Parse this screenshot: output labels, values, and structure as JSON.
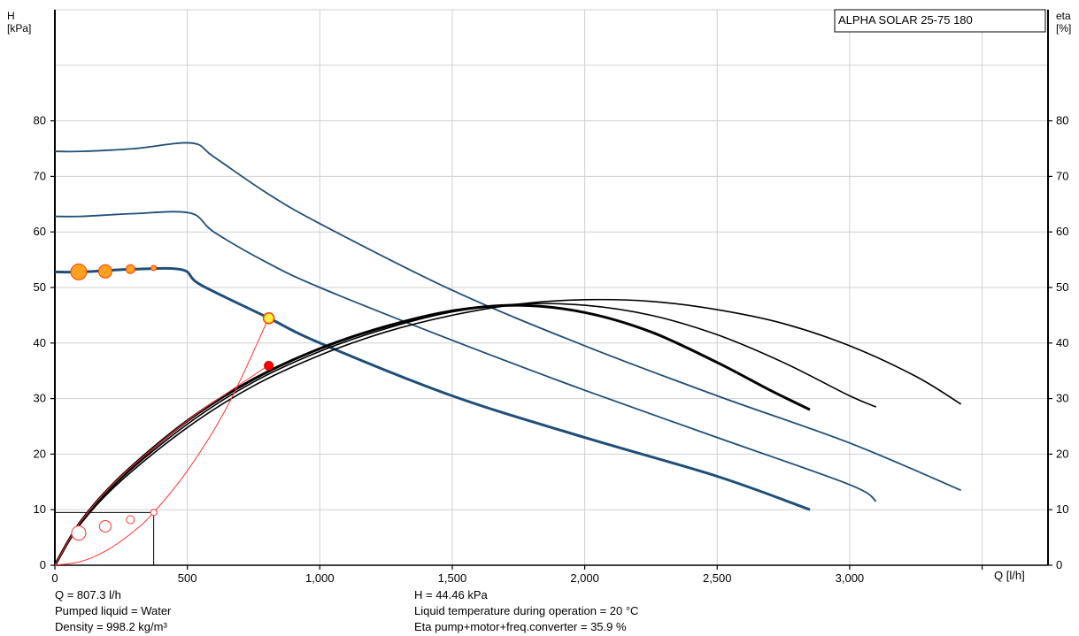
{
  "chart_data": {
    "type": "line",
    "title": "ALPHA SOLAR 25-75  180",
    "y_left_label": [
      "H",
      "[kPa]"
    ],
    "y_right_label": [
      "eta",
      "[%]"
    ],
    "x_label": "Q [l/h]",
    "xlim": [
      0,
      3700
    ],
    "ylim": [
      0,
      100
    ],
    "x_ticks": [
      "0",
      "500",
      "1,000",
      "1,500",
      "2,000",
      "2,500",
      "3,000"
    ],
    "x_tick_values": [
      0,
      500,
      1000,
      1500,
      2000,
      2500,
      3000
    ],
    "y_ticks": [
      "0",
      "10",
      "20",
      "30",
      "40",
      "50",
      "60",
      "70",
      "80"
    ],
    "y_tick_values": [
      0,
      10,
      20,
      30,
      40,
      50,
      60,
      70,
      80
    ],
    "grid": true,
    "colors": {
      "head": "#1f4e79",
      "eta": "#000000",
      "system": "#ff3333",
      "marker_fill": "#ffa020",
      "duty_point": "#ff0000",
      "grid": "#d0d0d0"
    },
    "head_curves": [
      {
        "points": [
          [
            0,
            74.5
          ],
          [
            100,
            74.5
          ],
          [
            300,
            75
          ],
          [
            515,
            76
          ],
          [
            600,
            73.5
          ],
          [
            800,
            67
          ],
          [
            1000,
            61.5
          ],
          [
            1500,
            49.5
          ],
          [
            2000,
            39.5
          ],
          [
            2500,
            30.5
          ],
          [
            3000,
            22
          ],
          [
            3420,
            13.5
          ]
        ]
      },
      {
        "points": [
          [
            0,
            62.8
          ],
          [
            100,
            62.8
          ],
          [
            300,
            63.3
          ],
          [
            510,
            63.4
          ],
          [
            600,
            60
          ],
          [
            800,
            54.5
          ],
          [
            1000,
            50
          ],
          [
            1500,
            40.5
          ],
          [
            2000,
            31.5
          ],
          [
            2500,
            23
          ],
          [
            3000,
            14.5
          ],
          [
            3100,
            11.5
          ]
        ]
      },
      {
        "points": [
          [
            0,
            52.8
          ],
          [
            100,
            52.8
          ],
          [
            300,
            53.3
          ],
          [
            480,
            53.2
          ],
          [
            550,
            50.5
          ],
          [
            807,
            44.5
          ],
          [
            1000,
            40
          ],
          [
            1500,
            30.5
          ],
          [
            2000,
            23
          ],
          [
            2500,
            16
          ],
          [
            2850,
            10
          ]
        ],
        "thick": true
      }
    ],
    "eta_curves": [
      {
        "points": [
          [
            0,
            0
          ],
          [
            100,
            8
          ],
          [
            250,
            16
          ],
          [
            500,
            26
          ],
          [
            750,
            33.5
          ],
          [
            1000,
            39
          ],
          [
            1250,
            43
          ],
          [
            1500,
            45.8
          ],
          [
            1750,
            46.8
          ],
          [
            2000,
            45.5
          ],
          [
            2250,
            42
          ],
          [
            2500,
            36.5
          ],
          [
            2700,
            31.5
          ],
          [
            2850,
            28
          ]
        ],
        "thick": true
      },
      {
        "points": [
          [
            0,
            0
          ],
          [
            100,
            7.8
          ],
          [
            250,
            15.6
          ],
          [
            500,
            25.4
          ],
          [
            750,
            33
          ],
          [
            1000,
            38.5
          ],
          [
            1250,
            42.6
          ],
          [
            1500,
            45.6
          ],
          [
            1750,
            47
          ],
          [
            2000,
            46.8
          ],
          [
            2250,
            45
          ],
          [
            2500,
            41.5
          ],
          [
            2750,
            36.5
          ],
          [
            3000,
            30.5
          ],
          [
            3100,
            28.5
          ]
        ]
      },
      {
        "points": [
          [
            0,
            0
          ],
          [
            100,
            7.6
          ],
          [
            250,
            15.2
          ],
          [
            500,
            24.8
          ],
          [
            750,
            32.3
          ],
          [
            1000,
            37.8
          ],
          [
            1250,
            42
          ],
          [
            1500,
            45
          ],
          [
            1750,
            47
          ],
          [
            2000,
            47.8
          ],
          [
            2250,
            47.5
          ],
          [
            2500,
            46
          ],
          [
            2750,
            43.5
          ],
          [
            3000,
            39.5
          ],
          [
            3250,
            34
          ],
          [
            3420,
            29
          ]
        ]
      }
    ],
    "system_curve_head": [
      [
        0,
        0
      ],
      [
        100,
        0.7
      ],
      [
        200,
        2.8
      ],
      [
        300,
        6.2
      ],
      [
        373,
        9.5
      ],
      [
        500,
        17
      ],
      [
        650,
        28.5
      ],
      [
        807,
        44.5
      ]
    ],
    "system_curve_eta": [
      [
        0,
        0
      ],
      [
        100,
        8
      ],
      [
        250,
        16
      ],
      [
        500,
        26
      ],
      [
        650,
        31
      ],
      [
        807,
        36
      ]
    ],
    "head_markers": [
      {
        "q": 90,
        "h": 52.8,
        "size": 9
      },
      {
        "q": 190,
        "h": 52.9,
        "size": 7.5
      },
      {
        "q": 285,
        "h": 53.3,
        "size": 5
      },
      {
        "q": 373,
        "h": 53.5,
        "size": 3
      }
    ],
    "eta_markers": [
      {
        "q": 90,
        "h": 5.8,
        "size": 8
      },
      {
        "q": 190,
        "h": 7,
        "size": 6.5
      },
      {
        "q": 285,
        "h": 8.2,
        "size": 4.5
      },
      {
        "q": 373,
        "h": 9.5,
        "size": 3.5
      }
    ],
    "duty_point": {
      "q": 807.3,
      "h": 44.46,
      "eta": 35.9
    },
    "reference_box": {
      "q": 373,
      "h": 9.5
    }
  },
  "info": {
    "q": "Q = 807.3 l/h",
    "liquid": "Pumped liquid = Water",
    "density": "Density = 998.2 kg/m³",
    "h": "H = 44.46 kPa",
    "temp": "Liquid temperature during operation = 20 °C",
    "eta": "Eta pump+motor+freq.converter = 35.9 %"
  }
}
